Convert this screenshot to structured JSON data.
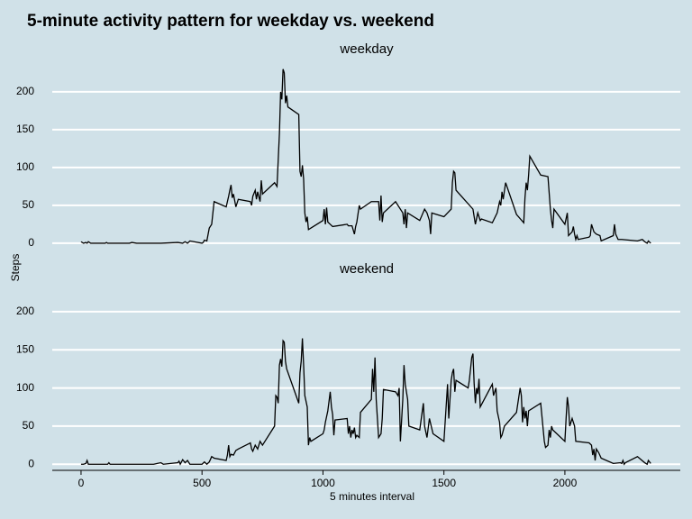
{
  "chart_data": {
    "type": "line",
    "title": "5-minute activity pattern for weekday vs. weekend",
    "xlabel": "5 minutes interval",
    "ylabel": "Steps",
    "color": "#000000",
    "grid": true,
    "xlim": [
      -119,
      2477
    ],
    "xticks": [
      0,
      500,
      1000,
      1500,
      2000
    ],
    "panels": [
      {
        "label": "weekday",
        "ylim": [
          -12,
          238
        ],
        "yticks": [
          0,
          50,
          100,
          150,
          200
        ],
        "x": [
          0,
          10,
          20,
          25,
          30,
          40,
          100,
          105,
          110,
          200,
          210,
          230,
          300,
          330,
          400,
          420,
          430,
          440,
          450,
          500,
          505,
          510,
          520,
          530,
          540,
          550,
          600,
          610,
          615,
          620,
          625,
          630,
          640,
          650,
          700,
          705,
          710,
          720,
          725,
          730,
          740,
          745,
          750,
          800,
          810,
          820,
          825,
          830,
          835,
          840,
          845,
          850,
          855,
          900,
          905,
          910,
          915,
          920,
          925,
          930,
          935,
          940,
          1000,
          1005,
          1010,
          1015,
          1020,
          1030,
          1040,
          1100,
          1105,
          1120,
          1130,
          1135,
          1140,
          1150,
          1155,
          1200,
          1230,
          1235,
          1240,
          1245,
          1250,
          1300,
          1330,
          1335,
          1340,
          1345,
          1350,
          1400,
          1420,
          1430,
          1440,
          1445,
          1450,
          1500,
          1530,
          1535,
          1540,
          1545,
          1550,
          1620,
          1630,
          1640,
          1650,
          1655,
          1700,
          1720,
          1730,
          1735,
          1740,
          1745,
          1755,
          1800,
          1830,
          1835,
          1840,
          1845,
          1850,
          1855,
          1900,
          1930,
          1940,
          1945,
          1950,
          1955,
          2000,
          2010,
          2015,
          2030,
          2035,
          2040,
          2045,
          2050,
          2055,
          2100,
          2105,
          2110,
          2120,
          2130,
          2145,
          2150,
          2200,
          2205,
          2210,
          2220,
          2235,
          2300,
          2320,
          2330,
          2340,
          2345,
          2355
        ],
        "values": [
          2,
          0,
          1,
          0,
          2,
          0,
          0,
          1,
          0,
          0,
          1,
          0,
          0,
          0,
          1,
          0,
          2,
          0,
          3,
          0,
          1,
          4,
          3,
          20,
          25,
          55,
          48,
          62,
          70,
          77,
          60,
          65,
          48,
          58,
          55,
          50,
          62,
          70,
          58,
          68,
          55,
          83,
          65,
          80,
          75,
          145,
          200,
          190,
          230,
          225,
          185,
          195,
          180,
          170,
          95,
          88,
          103,
          85,
          40,
          28,
          35,
          18,
          30,
          45,
          25,
          47,
          28,
          25,
          22,
          25,
          23,
          23,
          12,
          22,
          28,
          50,
          45,
          55,
          55,
          30,
          63,
          28,
          40,
          55,
          40,
          25,
          45,
          20,
          40,
          30,
          45,
          40,
          30,
          12,
          40,
          35,
          45,
          80,
          95,
          93,
          70,
          45,
          25,
          40,
          30,
          32,
          27,
          40,
          55,
          50,
          68,
          58,
          80,
          38,
          27,
          60,
          80,
          70,
          90,
          115,
          90,
          88,
          45,
          30,
          20,
          45,
          25,
          40,
          10,
          15,
          22,
          12,
          5,
          10,
          5,
          8,
          10,
          25,
          15,
          12,
          10,
          3,
          10,
          25,
          12,
          5,
          5,
          3,
          5,
          2,
          0,
          3,
          0
        ]
      },
      {
        "label": "weekend",
        "ylim": [
          -8,
          233
        ],
        "yticks": [
          0,
          50,
          100,
          150,
          200
        ],
        "x": [
          0,
          10,
          20,
          25,
          30,
          100,
          110,
          115,
          120,
          200,
          300,
          315,
          330,
          340,
          400,
          405,
          410,
          420,
          430,
          440,
          450,
          500,
          510,
          520,
          530,
          540,
          550,
          600,
          605,
          610,
          615,
          620,
          630,
          640,
          650,
          700,
          705,
          710,
          720,
          730,
          740,
          750,
          800,
          805,
          810,
          815,
          820,
          825,
          830,
          835,
          840,
          845,
          850,
          900,
          905,
          910,
          915,
          920,
          925,
          935,
          940,
          945,
          950,
          1000,
          1005,
          1010,
          1020,
          1030,
          1035,
          1040,
          1045,
          1050,
          1100,
          1105,
          1110,
          1115,
          1120,
          1125,
          1130,
          1135,
          1140,
          1150,
          1155,
          1200,
          1205,
          1210,
          1215,
          1220,
          1225,
          1230,
          1240,
          1245,
          1250,
          1300,
          1310,
          1315,
          1320,
          1330,
          1335,
          1340,
          1350,
          1355,
          1400,
          1415,
          1420,
          1430,
          1440,
          1455,
          1500,
          1510,
          1515,
          1520,
          1525,
          1530,
          1535,
          1540,
          1545,
          1550,
          1600,
          1605,
          1615,
          1620,
          1625,
          1630,
          1635,
          1640,
          1645,
          1650,
          1700,
          1705,
          1710,
          1715,
          1720,
          1730,
          1735,
          1740,
          1750,
          1800,
          1815,
          1820,
          1825,
          1830,
          1835,
          1840,
          1845,
          1850,
          1900,
          1915,
          1920,
          1930,
          1935,
          1940,
          1945,
          1950,
          2000,
          2005,
          2010,
          2015,
          2020,
          2030,
          2040,
          2045,
          2100,
          2110,
          2115,
          2120,
          2125,
          2130,
          2140,
          2150,
          2200,
          2230,
          2235,
          2240,
          2245,
          2250,
          2300,
          2330,
          2340,
          2345,
          2355
        ],
        "values": [
          0,
          0,
          1,
          5,
          0,
          0,
          0,
          2,
          0,
          0,
          0,
          1,
          2,
          0,
          2,
          4,
          0,
          6,
          2,
          5,
          0,
          0,
          3,
          0,
          3,
          10,
          8,
          5,
          12,
          25,
          10,
          13,
          12,
          18,
          20,
          28,
          20,
          17,
          25,
          20,
          30,
          25,
          50,
          90,
          88,
          80,
          130,
          138,
          128,
          162,
          160,
          135,
          125,
          80,
          120,
          135,
          165,
          130,
          90,
          75,
          25,
          35,
          30,
          40,
          45,
          55,
          70,
          95,
          75,
          65,
          38,
          58,
          60,
          40,
          50,
          35,
          45,
          40,
          48,
          35,
          38,
          35,
          68,
          85,
          125,
          95,
          140,
          85,
          60,
          35,
          40,
          60,
          98,
          95,
          90,
          100,
          30,
          85,
          130,
          105,
          85,
          50,
          45,
          80,
          50,
          35,
          60,
          40,
          30,
          80,
          105,
          60,
          85,
          110,
          120,
          125,
          95,
          110,
          100,
          110,
          140,
          145,
          105,
          80,
          100,
          92,
          112,
          75,
          105,
          90,
          95,
          100,
          70,
          55,
          35,
          38,
          50,
          68,
          100,
          90,
          55,
          75,
          60,
          70,
          50,
          70,
          80,
          30,
          22,
          25,
          45,
          35,
          50,
          45,
          30,
          60,
          88,
          75,
          50,
          60,
          50,
          30,
          28,
          25,
          12,
          20,
          5,
          20,
          15,
          8,
          1,
          2,
          1,
          5,
          0,
          2,
          10,
          2,
          0,
          5,
          1
        ]
      }
    ]
  }
}
